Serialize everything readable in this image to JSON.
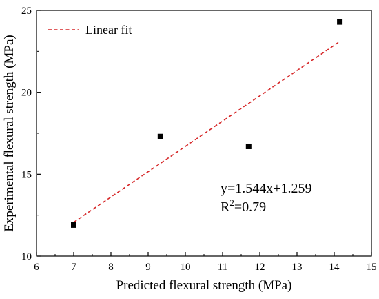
{
  "chart_data": {
    "type": "scatter",
    "xlabel": "Predicted flexural strength (MPa)",
    "ylabel": "Experimental flexural strength (MPa)",
    "xlim": [
      6,
      15
    ],
    "ylim": [
      10,
      25
    ],
    "x_ticks": [
      "6",
      "7",
      "8",
      "9",
      "10",
      "11",
      "12",
      "13",
      "14",
      "15"
    ],
    "y_ticks": [
      "10",
      "15",
      "20",
      "25"
    ],
    "grid": false,
    "legend_position": "top-left",
    "series": [
      {
        "kind": "points",
        "marker": "square",
        "color": "#000000",
        "x": [
          7.0,
          9.33,
          11.7,
          14.15
        ],
        "y": [
          11.9,
          17.3,
          16.7,
          24.3
        ]
      },
      {
        "kind": "fit",
        "name": "Linear fit",
        "line_style": "dashed",
        "color": "#d62728",
        "slope": 1.544,
        "intercept": 1.259,
        "x_range": [
          7.0,
          14.15
        ]
      }
    ],
    "annotation": {
      "equation": "y=1.544x+1.259",
      "r2_prefix": "R",
      "r2_sup": "2",
      "r2_suffix": "=0.79"
    }
  }
}
